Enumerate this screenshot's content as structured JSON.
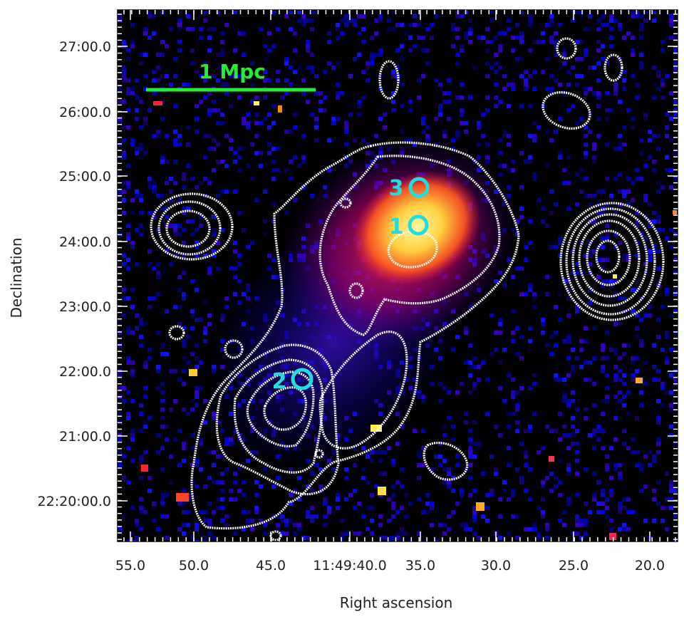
{
  "axes": {
    "xlabel": "Right ascension",
    "ylabel": "Declination",
    "x_ticks": [
      "55.0",
      "50.0",
      "45.0",
      "11:49:40.0",
      "35.0",
      "30.0",
      "25.0",
      "20.0"
    ],
    "y_ticks": [
      "27:00.0",
      "26:00.0",
      "25:00.0",
      "24:00.0",
      "23:00.0",
      "22:00.0",
      "21:00.0",
      "22:20:00.0"
    ]
  },
  "scalebar": {
    "label": "1 Mpc",
    "color": "#22ee33"
  },
  "markers": {
    "color": "#22dddd",
    "items": [
      {
        "label": "1"
      },
      {
        "label": "2"
      },
      {
        "label": "3"
      }
    ]
  },
  "colors": {
    "background": "#000000",
    "noise_low": "#0000cc",
    "emission_mid": "#dd1133",
    "emission_high": "#ffee66",
    "contours": "#ffffff"
  }
}
